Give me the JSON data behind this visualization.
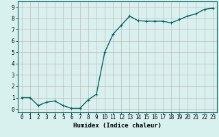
{
  "x": [
    0,
    1,
    2,
    3,
    4,
    5,
    6,
    7,
    8,
    9,
    10,
    11,
    12,
    13,
    14,
    15,
    16,
    17,
    18,
    19,
    20,
    21,
    22,
    23
  ],
  "y": [
    1.0,
    1.0,
    0.3,
    0.6,
    0.7,
    0.3,
    0.05,
    0.05,
    0.8,
    1.3,
    5.0,
    6.6,
    7.4,
    8.2,
    7.8,
    7.75,
    7.75,
    7.75,
    7.6,
    7.9,
    8.2,
    8.4,
    8.8,
    8.9
  ],
  "line_color": "#006666",
  "marker": "+",
  "bg_color": "#d8f0ee",
  "grid_color_major": "#c8b8b8",
  "xlabel": "Humidex (Indice chaleur)",
  "xlim": [
    -0.5,
    23.5
  ],
  "ylim": [
    -0.3,
    9.5
  ],
  "yticks": [
    0,
    1,
    2,
    3,
    4,
    5,
    6,
    7,
    8,
    9
  ],
  "xticks": [
    0,
    1,
    2,
    3,
    4,
    5,
    6,
    7,
    8,
    9,
    10,
    11,
    12,
    13,
    14,
    15,
    16,
    17,
    18,
    19,
    20,
    21,
    22,
    23
  ],
  "tick_label_size": 5.5,
  "xlabel_size": 6.5,
  "line_width": 1.0,
  "marker_size": 3.5,
  "marker_edge_width": 0.8
}
